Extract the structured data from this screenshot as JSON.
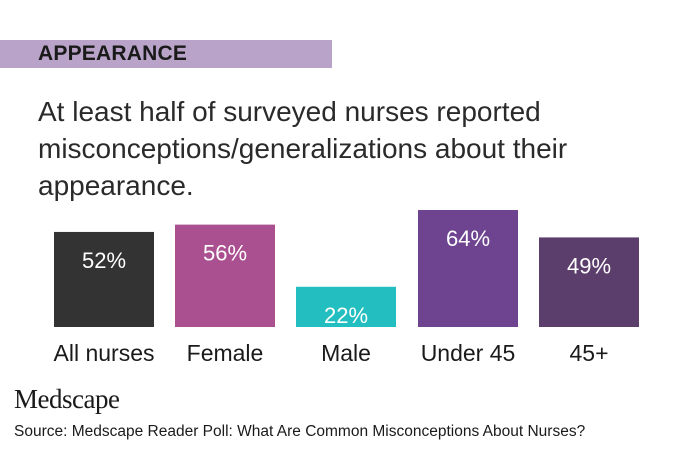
{
  "section_label": "APPEARANCE",
  "headline": "At least half of surveyed nurses reported misconceptions/generalizations about their appearance.",
  "logo": "Medscape",
  "source": "Source: Medscape Reader Poll: What Are Common Misconceptions About Nurses?",
  "colors": {
    "banner": "#b9a3c8",
    "bars": [
      "#333333",
      "#aa4f8f",
      "#23bfc0",
      "#6e4390",
      "#5c3e6c"
    ]
  },
  "chart_data": {
    "type": "bar",
    "title": "",
    "xlabel": "",
    "ylabel": "",
    "ylim": [
      0,
      64
    ],
    "grid": false,
    "categories": [
      "All nurses",
      "Female",
      "Male",
      "Under 45",
      "45+"
    ],
    "values": [
      52,
      56,
      22,
      64,
      49
    ],
    "data_labels": [
      "52%",
      "56%",
      "22%",
      "64%",
      "49%"
    ]
  }
}
